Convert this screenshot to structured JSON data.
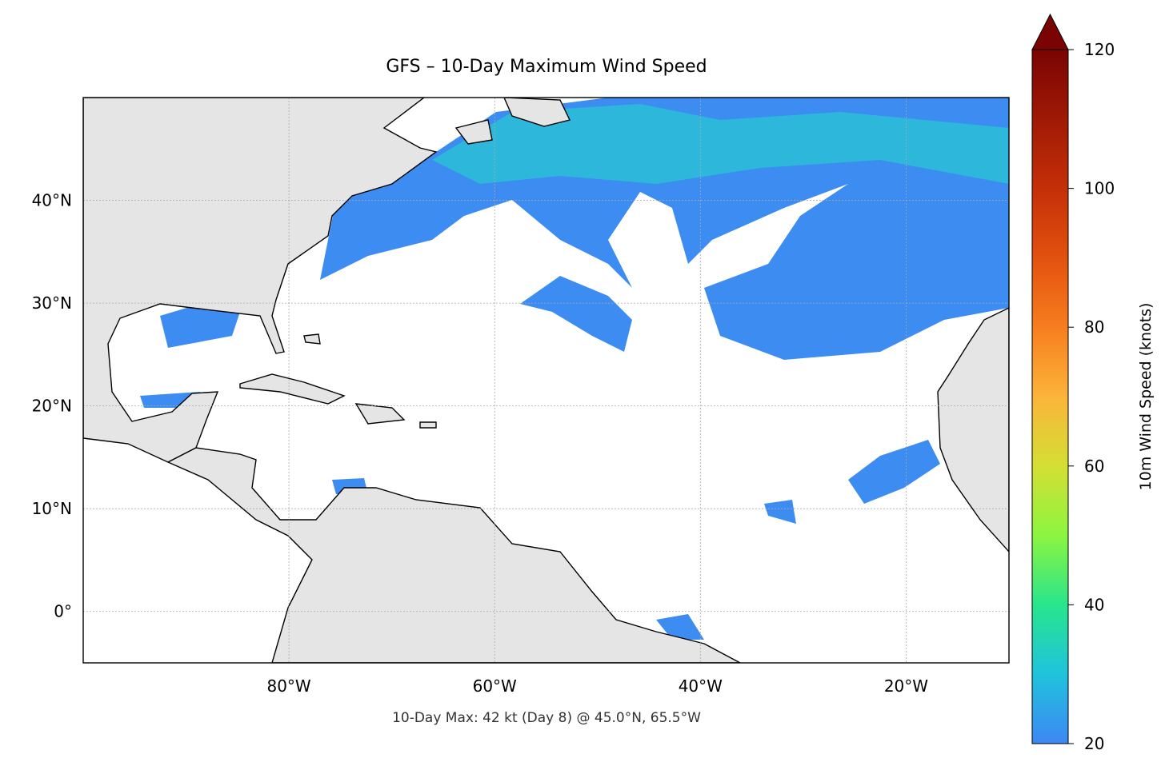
{
  "title": "GFS – 10-Day Maximum Wind Speed",
  "map": {
    "lon_lim": [
      -100,
      -10
    ],
    "lat_lim": [
      -5,
      50
    ],
    "xticks": [
      {
        "value": -80,
        "label": "80°W"
      },
      {
        "value": -60,
        "label": "60°W"
      },
      {
        "value": -40,
        "label": "40°W"
      },
      {
        "value": -20,
        "label": "20°W"
      }
    ],
    "yticks": [
      {
        "value": 0,
        "label": "0°"
      },
      {
        "value": 10,
        "label": "10°N"
      },
      {
        "value": 20,
        "label": "20°N"
      },
      {
        "value": 30,
        "label": "30°N"
      },
      {
        "value": 40,
        "label": "40°N"
      }
    ],
    "grid": true
  },
  "colorbar": {
    "label": "10m Wind Speed (knots)",
    "lim": [
      20,
      120
    ],
    "ticks": [
      20,
      40,
      60,
      80,
      100,
      120
    ],
    "extend": "max"
  },
  "annotation": "10-Day Max: 42 kt (Day 8) @ 45.0°N, 65.5°W"
}
